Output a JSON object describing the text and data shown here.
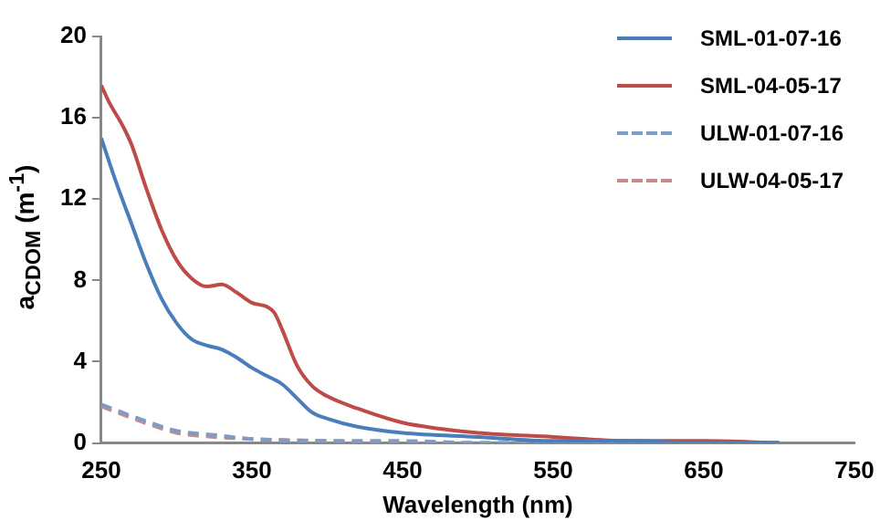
{
  "chart_data": {
    "type": "line",
    "xlabel": "Wavelength (nm)",
    "ylabel": "a$_{CDOM}$ (m$^{-1}$)",
    "xlim": [
      250,
      750
    ],
    "xticks": [
      250,
      350,
      450,
      550,
      650,
      750
    ],
    "ylim": [
      0,
      20
    ],
    "yticks": [
      0,
      4,
      8,
      12,
      16,
      20
    ],
    "grid": false,
    "legend": "top right",
    "marker": "none",
    "series": [
      {
        "name": "SML-01-07-16",
        "color": "#4a7ebb",
        "line_style": "solid",
        "x": [
          250,
          260,
          270,
          280,
          290,
          300,
          310,
          320,
          330,
          340,
          350,
          360,
          370,
          380,
          390,
          400,
          420,
          450,
          500,
          550,
          600,
          650,
          700
        ],
        "values": [
          15,
          12.8,
          10.8,
          8.8,
          7.1,
          5.9,
          5.1,
          4.8,
          4.6,
          4.2,
          3.7,
          3.3,
          2.9,
          2.2,
          1.5,
          1.2,
          0.8,
          0.5,
          0.3,
          0.1,
          0.1,
          0,
          0
        ]
      },
      {
        "name": "SML-04-05-17",
        "color": "#be4b48",
        "line_style": "solid",
        "x": [
          250,
          255,
          265,
          270,
          280,
          290,
          300,
          310,
          320,
          330,
          340,
          350,
          360,
          365,
          370,
          380,
          390,
          400,
          420,
          450,
          475,
          500,
          550,
          600,
          650,
          700
        ],
        "values": [
          17.6,
          16.8,
          15.5,
          14.7,
          12.5,
          10.5,
          9.0,
          8.1,
          7.7,
          7.8,
          7.4,
          6.9,
          6.7,
          6.4,
          5.6,
          3.8,
          2.8,
          2.3,
          1.7,
          1.0,
          0.7,
          0.5,
          0.3,
          0.1,
          0.1,
          0
        ]
      },
      {
        "name": "ULW-01-07-16",
        "color": "#7e9cc4",
        "line_style": "dashed",
        "x": [
          250,
          275,
          300,
          325,
          350,
          400,
          450,
          500,
          600,
          700
        ],
        "values": [
          1.9,
          1.2,
          0.6,
          0.4,
          0.2,
          0.1,
          0.1,
          0,
          0,
          0
        ]
      },
      {
        "name": "ULW-04-05-17",
        "color": "#c88a8a",
        "line_style": "dashed",
        "x": [
          250,
          275,
          300,
          325,
          350,
          400,
          450,
          500,
          600,
          700
        ],
        "values": [
          1.8,
          1.1,
          0.5,
          0.3,
          0.2,
          0.1,
          0,
          0,
          0,
          0
        ]
      }
    ]
  }
}
